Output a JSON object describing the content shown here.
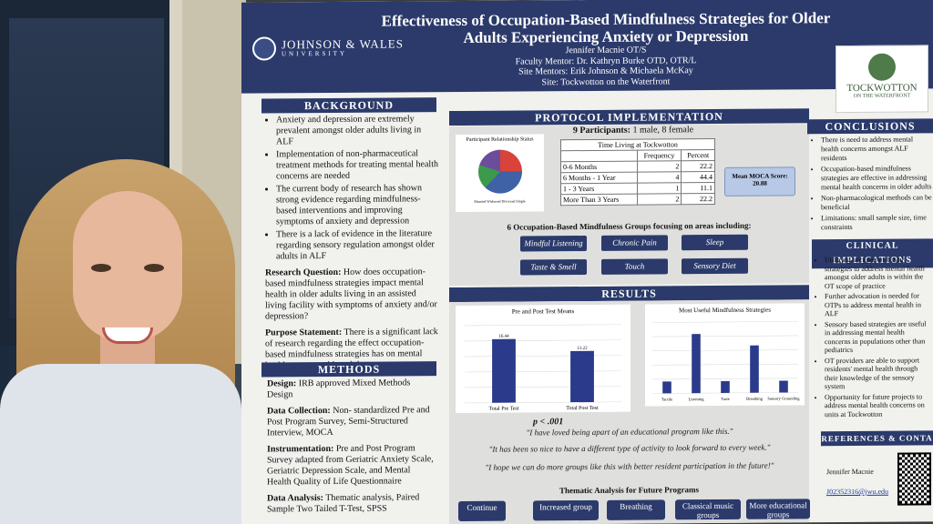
{
  "poster": {
    "university_name": "JOHNSON & WALES",
    "university_sub": "UNIVERSITY",
    "title": "Effectiveness of Occupation-Based Mindfulness Strategies for Older Adults Experiencing Anxiety or Depression",
    "author": "Jennifer Macnie OT/S",
    "faculty_mentor": "Faculty Mentor: Dr. Kathryn Burke OTD, OTR/L",
    "site_mentors": "Site Mentors: Erik Johnson & Michaela McKay",
    "site": "Site: Tockwotton on the Waterfront",
    "partner_logo": "TOCKWOTTON",
    "partner_logo_sub": "ON THE WATERFRONT"
  },
  "background": {
    "heading": "BACKGROUND",
    "bullets": [
      "Anxiety and depression are extremely prevalent amongst older adults living in ALF",
      "Implementation of non-pharmaceutical treatment methods for treating mental health concerns are needed",
      "The current body of research has shown strong evidence regarding mindfulness-based interventions and improving symptoms of anxiety and depression",
      "There is a lack of evidence in the literature regarding sensory regulation amongst older adults in ALF"
    ],
    "research_question_label": "Research Question:",
    "research_question": "How does occupation-based mindfulness strategies impact mental health in older adults living in an assisted living facility with symptoms of anxiety and/or depression?",
    "purpose_label": "Purpose Statement:",
    "purpose": "There is a significant lack of research regarding the effect occupation-based mindfulness strategies has on mental health amongst older adults"
  },
  "methods": {
    "heading": "METHODS",
    "design_label": "Design:",
    "design": "IRB approved Mixed Methods Design",
    "collection_label": "Data Collection:",
    "collection": "Non- standardized Pre and Post Program Survey, Semi-Structured Interview, MOCA",
    "instrumentation_label": "Instrumentation:",
    "instrumentation": "Pre and Post Program Survey adapted from Geriatric Anxiety Scale, Geriatric Depression Scale, and Mental Health Quality of Life Questionnaire",
    "analysis_label": "Data Analysis:",
    "analysis": "Thematic analysis, Paired Sample Two Tailed T-Test, SPSS"
  },
  "protocol": {
    "heading": "PROTOCOL IMPLEMENTATION",
    "participants_label": "9 Participants:",
    "participants": "1 male, 8 female",
    "pie_title": "Participant Relationship Status",
    "pie_legend": "Married  Widowed  Divorced  Single",
    "table_title": "Time Living at Tockwotton",
    "table_headers": [
      "",
      "Frequency",
      "Percent"
    ],
    "table_rows": [
      [
        "0-6 Months",
        "2",
        "22.2"
      ],
      [
        "6 Months - 1 Year",
        "4",
        "44.4"
      ],
      [
        "1 - 3 Years",
        "1",
        "11.1"
      ],
      [
        "More Than 3 Years",
        "2",
        "22.2"
      ]
    ],
    "moca_label": "Mean MOCA Score:",
    "moca_value": "20.88",
    "groups_heading": "6 Occupation-Based Mindfulness Groups focusing on areas including:",
    "groups": [
      "Mindful Listening",
      "Chronic Pain",
      "Sleep",
      "Taste & Smell",
      "Touch",
      "Sensory Diet"
    ]
  },
  "results": {
    "heading": "RESULTS",
    "p_value": "p < .001",
    "quotes": [
      "\"I have loved being apart of an educational program like this.\"",
      "\"It has been so nice to have a different type of activity to look forward to every week.\"",
      "\"I hope we can do more groups like this with better resident participation in the future!\""
    ],
    "thematic_heading": "Thematic Analysis for Future Programs",
    "thematic_items": [
      "Continue",
      "Increased group",
      "Breathing",
      "Classical music groups",
      "More educational groups"
    ]
  },
  "conclusions": {
    "heading": "CONCLUSIONS",
    "bullets": [
      "There is need to address mental health concerns amongst ALF residents",
      "Occupation-based mindfulness strategies are effective in addressing mental health concerns in older adults",
      "Non-pharmacological methods can be beneficial",
      "Limitations: small sample size, time constraints"
    ]
  },
  "clinical": {
    "heading": "CLINICAL IMPLICATIONS",
    "bullets": [
      "Utilizing occupation-based strategies to address mental health amongst older adults is within the OT scope of practice",
      "Further advocation is needed for OTPs to address mental health in ALF",
      "Sensory based strategies are useful in addressing mental health concerns in populations other than pediatrics",
      "OT providers are able to support residents' mental health through their knowledge of the sensory system",
      "Opportunity for future projects to address mental health concerns on units at Tockwotton"
    ]
  },
  "references": {
    "heading": "REFERENCES & CONTA",
    "name": "Jennifer Macnie",
    "email": "J02352316@jwu.edu"
  },
  "chart_data": [
    {
      "type": "bar",
      "title": "Pre and Post Test Means",
      "categories": [
        "Total Pre Test",
        "Total Post Test"
      ],
      "values": [
        16.44,
        13.22
      ],
      "data_labels": [
        "16.44",
        "13.22"
      ],
      "ylim": [
        0,
        20
      ],
      "grid": true,
      "color": "#2b3a8a"
    },
    {
      "type": "bar",
      "title": "Most Useful Mindfulness Strategies",
      "categories": [
        "Tactile",
        "Listening",
        "Taste",
        "Breathing",
        "Sensory Grounding"
      ],
      "values": [
        1,
        5,
        1,
        4,
        1
      ],
      "ylim": [
        0,
        6
      ],
      "grid": true,
      "color": "#2b3a8a"
    }
  ]
}
